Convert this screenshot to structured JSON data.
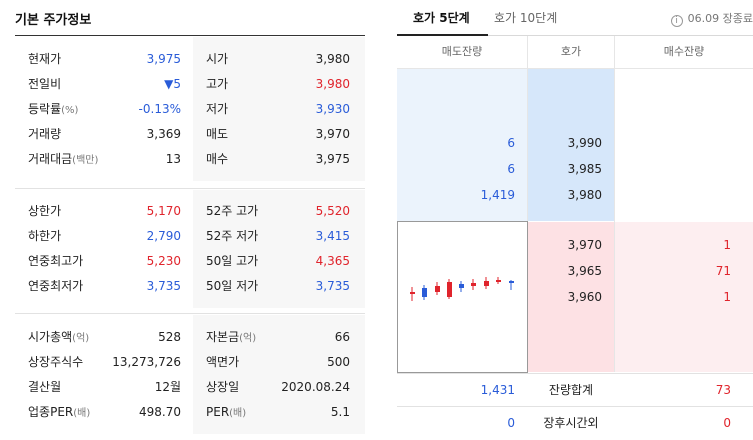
{
  "left": {
    "title": "기본 주가정보",
    "sections": [
      {
        "rows": [
          {
            "l_label": "현재가",
            "l_unit": "",
            "l_value": "3,975",
            "l_color": "blue",
            "r_label": "시가",
            "r_unit": "",
            "r_value": "3,980",
            "r_color": ""
          },
          {
            "l_label": "전일비",
            "l_unit": "",
            "l_value": "▼5",
            "l_color": "blue",
            "r_label": "고가",
            "r_unit": "",
            "r_value": "3,980",
            "r_color": "red"
          },
          {
            "l_label": "등락률",
            "l_unit": "(%)",
            "l_value": "-0.13%",
            "l_color": "blue",
            "r_label": "저가",
            "r_unit": "",
            "r_value": "3,930",
            "r_color": "blue"
          },
          {
            "l_label": "거래량",
            "l_unit": "",
            "l_value": "3,369",
            "l_color": "",
            "r_label": "매도",
            "r_unit": "",
            "r_value": "3,970",
            "r_color": ""
          },
          {
            "l_label": "거래대금",
            "l_unit": "(백만)",
            "l_value": "13",
            "l_color": "",
            "r_label": "매수",
            "r_unit": "",
            "r_value": "3,975",
            "r_color": ""
          }
        ]
      },
      {
        "rows": [
          {
            "l_label": "상한가",
            "l_unit": "",
            "l_value": "5,170",
            "l_color": "red",
            "r_label": "52주 고가",
            "r_unit": "",
            "r_value": "5,520",
            "r_color": "red"
          },
          {
            "l_label": "하한가",
            "l_unit": "",
            "l_value": "2,790",
            "l_color": "blue",
            "r_label": "52주 저가",
            "r_unit": "",
            "r_value": "3,415",
            "r_color": "blue"
          },
          {
            "l_label": "연중최고가",
            "l_unit": "",
            "l_value": "5,230",
            "l_color": "red",
            "r_label": "50일 고가",
            "r_unit": "",
            "r_value": "4,365",
            "r_color": "red"
          },
          {
            "l_label": "연중최저가",
            "l_unit": "",
            "l_value": "3,735",
            "l_color": "blue",
            "r_label": "50일 저가",
            "r_unit": "",
            "r_value": "3,735",
            "r_color": "blue"
          }
        ]
      },
      {
        "rows": [
          {
            "l_label": "시가총액",
            "l_unit": "(억)",
            "l_value": "528",
            "l_color": "",
            "r_label": "자본금",
            "r_unit": "(억)",
            "r_value": "66",
            "r_color": ""
          },
          {
            "l_label": "상장주식수",
            "l_unit": "",
            "l_value": "13,273,726",
            "l_color": "",
            "r_label": "액면가",
            "r_unit": "",
            "r_value": "500",
            "r_color": ""
          },
          {
            "l_label": "결산월",
            "l_unit": "",
            "l_value": "12월",
            "l_color": "",
            "r_label": "상장일",
            "r_unit": "",
            "r_value": "2020.08.24",
            "r_color": ""
          },
          {
            "l_label": "업종PER",
            "l_unit": "(배)",
            "l_value": "498.70",
            "l_color": "",
            "r_label": "PER",
            "r_unit": "(배)",
            "r_value": "5.1",
            "r_color": ""
          }
        ]
      }
    ]
  },
  "right": {
    "tabs": [
      {
        "label": "호가 5단계",
        "active": true
      },
      {
        "label": "호가 10단계",
        "active": false
      }
    ],
    "status_icon": "info-icon",
    "status_text": "06.09 장종료",
    "columns": [
      "매도잔량",
      "호가",
      "매수잔량"
    ],
    "asks": [
      {
        "qty": "6",
        "price": "3,990"
      },
      {
        "qty": "6",
        "price": "3,985"
      },
      {
        "qty": "1,419",
        "price": "3,980"
      }
    ],
    "bids": [
      {
        "price": "3,970",
        "qty": "1"
      },
      {
        "price": "3,965",
        "qty": "71"
      },
      {
        "price": "3,960",
        "qty": "1"
      }
    ],
    "summary": [
      {
        "left": "1,431",
        "label": "잔량합계",
        "right": "73"
      },
      {
        "left": "0",
        "label": "장후시간외",
        "right": "0"
      }
    ],
    "colors": {
      "up": "#e0242c",
      "down": "#2a5cd8"
    }
  }
}
